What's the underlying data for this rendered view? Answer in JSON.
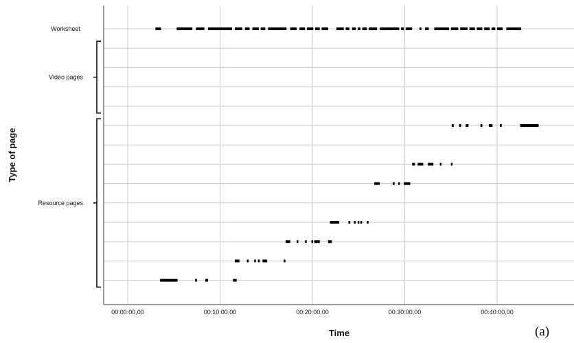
{
  "chart_data": {
    "type": "scatter",
    "xlabel": "Time",
    "ylabel": "Type of page",
    "panel_label": "(a)",
    "x_ticks": [
      "00:00:00,00",
      "00:10:00,00",
      "00:20:00,00",
      "00:30:00,00",
      "00:40:00,00"
    ],
    "xlim_minutes": [
      -2.5,
      48
    ],
    "row_count": 14,
    "groups": [
      {
        "label": "Worksheet",
        "rows": [
          0,
          0
        ]
      },
      {
        "label": "Video pages",
        "rows": [
          1,
          4
        ]
      },
      {
        "label": "Resource pages",
        "rows": [
          5,
          13
        ]
      }
    ],
    "series": [
      {
        "row": 0,
        "segments": [
          [
            3.0,
            3.6
          ],
          [
            5.3,
            7.0
          ],
          [
            7.4,
            8.3
          ],
          [
            8.7,
            11.3
          ],
          [
            11.6,
            12.4
          ],
          [
            12.7,
            13.2
          ],
          [
            13.5,
            14.2
          ],
          [
            14.4,
            14.9
          ],
          [
            15.2,
            17.2
          ],
          [
            17.6,
            18.3
          ],
          [
            18.6,
            19.2
          ],
          [
            19.4,
            20.1
          ],
          [
            20.3,
            20.8
          ],
          [
            21.0,
            21.7
          ],
          [
            22.6,
            23.4
          ],
          [
            23.6,
            24.0
          ],
          [
            24.3,
            24.7
          ],
          [
            24.9,
            25.2
          ],
          [
            25.4,
            25.9
          ],
          [
            26.1,
            27.0
          ],
          [
            27.3,
            29.4
          ],
          [
            29.6,
            29.9
          ],
          [
            30.1,
            30.8
          ],
          [
            31.6,
            31.8
          ],
          [
            32.2,
            32.6
          ],
          [
            33.2,
            34.8
          ],
          [
            35.0,
            35.8
          ],
          [
            36.0,
            36.8
          ],
          [
            37.0,
            37.6
          ],
          [
            37.8,
            38.4
          ],
          [
            38.6,
            39.2
          ],
          [
            39.4,
            39.8
          ],
          [
            40.0,
            40.6
          ],
          [
            41.0,
            42.6
          ]
        ]
      },
      {
        "row": 5,
        "segments": [
          [
            35.1,
            35.3
          ],
          [
            35.9,
            36.1
          ],
          [
            36.6,
            36.9
          ],
          [
            38.2,
            38.4
          ],
          [
            39.1,
            39.5
          ],
          [
            40.3,
            40.5
          ],
          [
            42.5,
            44.5
          ]
        ]
      },
      {
        "row": 7,
        "segments": [
          [
            30.8,
            31.1
          ],
          [
            31.4,
            32.0
          ],
          [
            32.5,
            33.1
          ],
          [
            33.8,
            33.9
          ],
          [
            35.0,
            35.1
          ]
        ]
      },
      {
        "row": 8,
        "segments": [
          [
            26.7,
            27.3
          ],
          [
            28.7,
            28.9
          ],
          [
            29.3,
            29.4
          ],
          [
            29.9,
            30.6
          ]
        ]
      },
      {
        "row": 10,
        "segments": [
          [
            21.9,
            22.9
          ],
          [
            23.9,
            24.1
          ],
          [
            24.5,
            24.6
          ],
          [
            24.9,
            25.0
          ],
          [
            25.2,
            25.3
          ],
          [
            25.9,
            26.0
          ]
        ]
      },
      {
        "row": 11,
        "segments": [
          [
            17.1,
            17.6
          ],
          [
            18.3,
            18.4
          ],
          [
            19.2,
            19.3
          ],
          [
            19.9,
            20.0
          ],
          [
            20.2,
            20.8
          ],
          [
            21.7,
            22.1
          ]
        ]
      },
      {
        "row": 12,
        "segments": [
          [
            11.6,
            12.1
          ],
          [
            12.9,
            13.1
          ],
          [
            13.7,
            13.8
          ],
          [
            14.1,
            14.3
          ],
          [
            14.6,
            15.1
          ],
          [
            16.9,
            17.0
          ]
        ]
      },
      {
        "row": 13,
        "segments": [
          [
            3.5,
            5.4
          ],
          [
            7.3,
            7.5
          ],
          [
            8.4,
            8.7
          ],
          [
            11.4,
            11.8
          ]
        ]
      }
    ]
  }
}
